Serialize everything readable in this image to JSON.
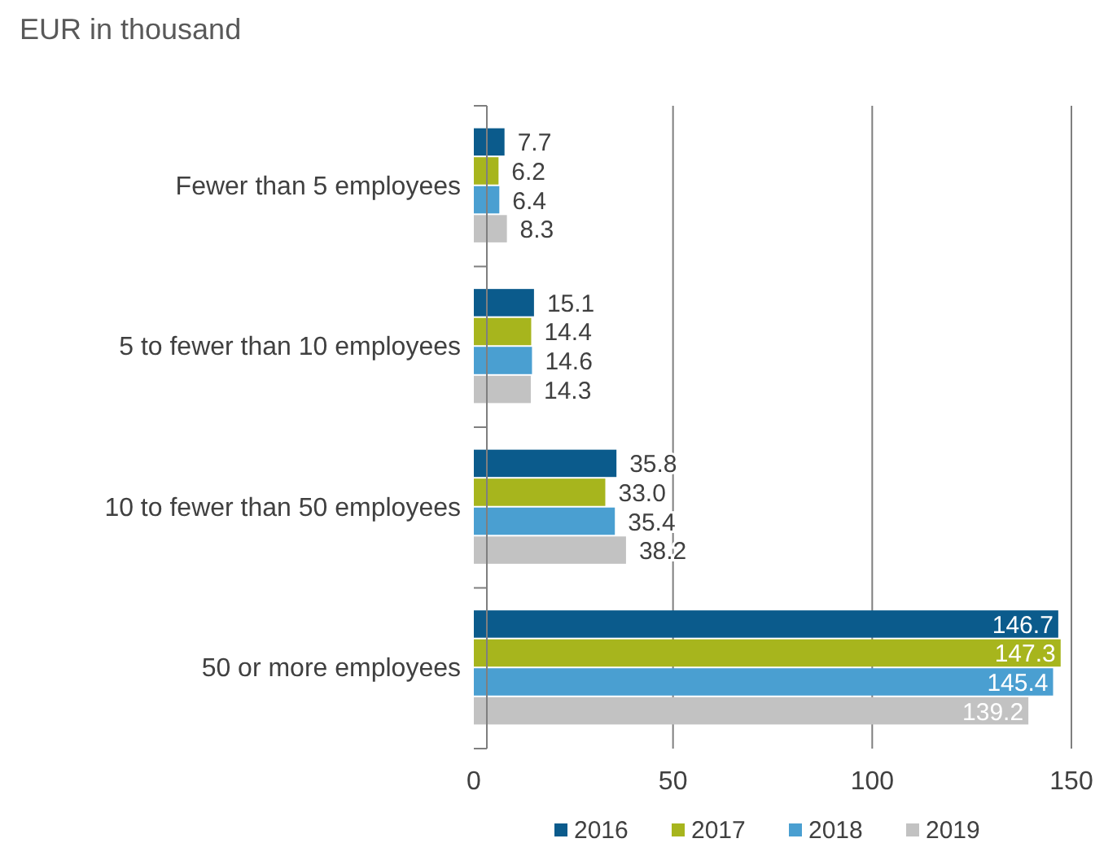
{
  "chart_data": {
    "type": "bar",
    "orientation": "horizontal",
    "title": "EUR in thousand",
    "categories": [
      "Fewer than 5 employees",
      "5 to fewer than 10 employees",
      "10 to fewer than 50 employees",
      "50 or more employees"
    ],
    "series": [
      {
        "name": "2016",
        "color": "#0b5b8c",
        "values": [
          7.7,
          15.1,
          35.8,
          146.7
        ]
      },
      {
        "name": "2017",
        "color": "#a7b51d",
        "values": [
          6.2,
          14.4,
          33.0,
          147.3
        ],
        "value_labels": [
          "6.2",
          "14.4",
          "33.0",
          "147.3"
        ]
      },
      {
        "name": "2018",
        "color": "#4a9fd1",
        "values": [
          6.4,
          14.6,
          35.4,
          145.4
        ]
      },
      {
        "name": "2019",
        "color": "#c2c2c2",
        "values": [
          8.3,
          14.3,
          38.2,
          139.2
        ]
      }
    ],
    "xlim": [
      0,
      150
    ],
    "xticks": [
      0,
      50,
      100,
      150
    ],
    "grid": "x",
    "legend": "bottom",
    "data_labels": true
  }
}
